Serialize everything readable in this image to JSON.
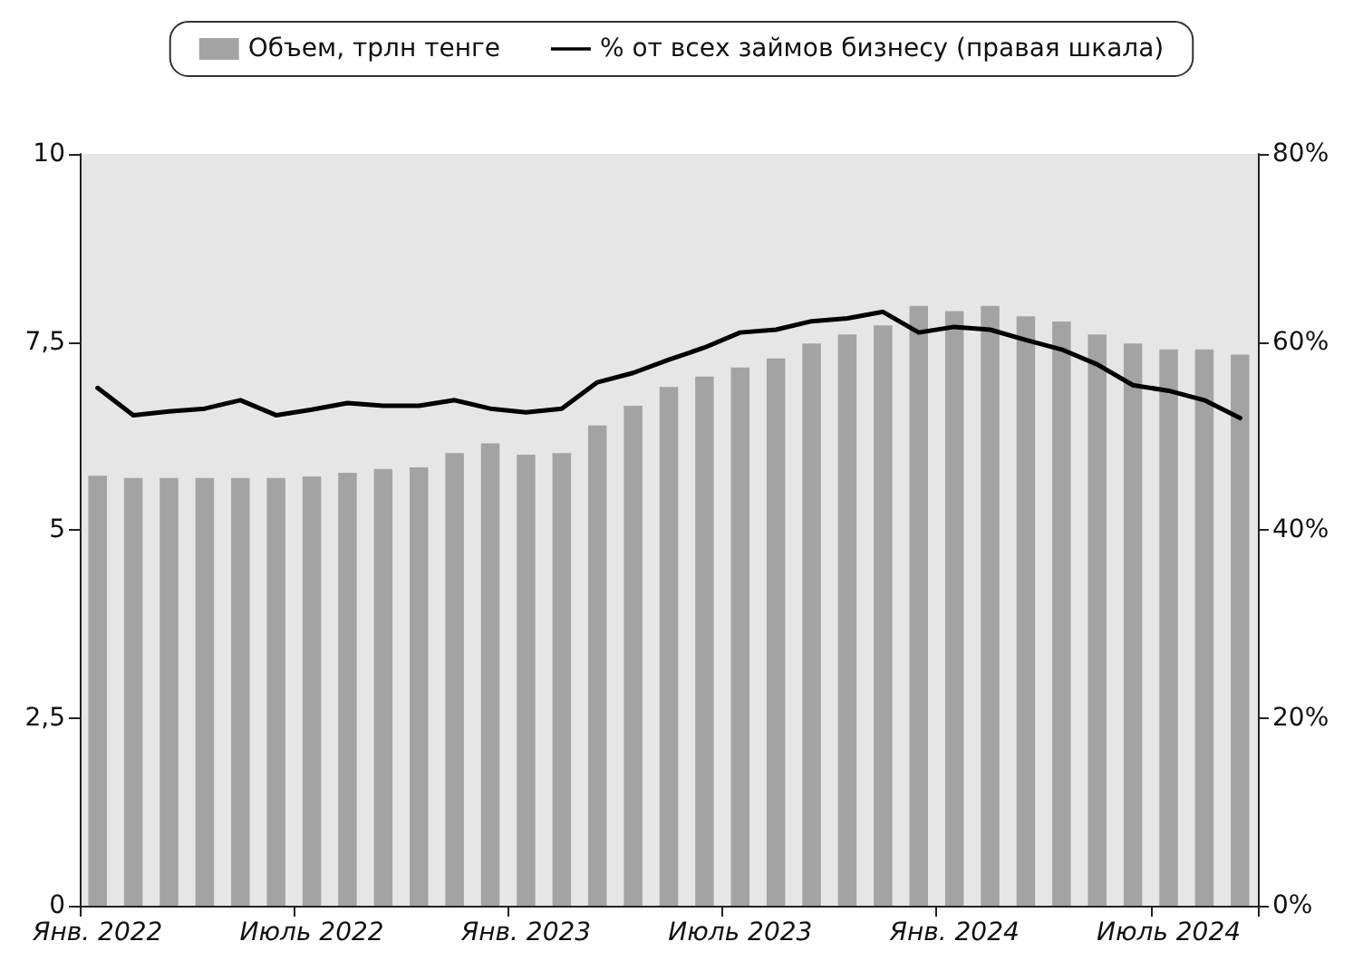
{
  "chart_data": {
    "type": "bar",
    "categories": [
      "Янв. 2022",
      null,
      null,
      null,
      null,
      null,
      "Июль 2022",
      null,
      null,
      null,
      null,
      null,
      "Янв. 2023",
      null,
      null,
      null,
      null,
      null,
      "Июль 2023",
      null,
      null,
      null,
      null,
      null,
      "Янв. 2024",
      null,
      null,
      null,
      null,
      null,
      "Июль 2024",
      null,
      null
    ],
    "series": [
      {
        "name": "Объем, трлн тенге",
        "color": "#a3a3a3",
        "values": [
          5.72,
          5.69,
          5.69,
          5.69,
          5.69,
          5.69,
          5.71,
          5.76,
          5.81,
          5.83,
          6.02,
          6.15,
          6.0,
          6.02,
          6.39,
          6.65,
          6.9,
          7.04,
          7.16,
          7.28,
          7.48,
          7.6,
          7.72,
          7.98,
          7.91,
          7.98,
          7.84,
          7.77,
          7.6,
          7.48,
          7.4,
          7.4,
          7.33
        ]
      },
      {
        "name": "% от всех займов бизнесу (правая шкала)",
        "type": "line",
        "axis": "y2",
        "color": "#000000",
        "values": [
          55.1,
          52.2,
          52.6,
          52.9,
          53.8,
          52.2,
          52.8,
          53.5,
          53.2,
          53.2,
          53.8,
          52.9,
          52.5,
          52.9,
          55.7,
          56.7,
          58.1,
          59.4,
          61.0,
          61.3,
          62.2,
          62.5,
          63.2,
          61.0,
          61.6,
          61.3,
          60.2,
          59.2,
          57.6,
          55.4,
          54.8,
          53.8,
          51.9
        ]
      }
    ],
    "ylim": [
      0,
      10
    ],
    "yticks": [
      {
        "value": 0,
        "label": "0"
      },
      {
        "value": 2.5,
        "label": "2,5"
      },
      {
        "value": 5,
        "label": "5"
      },
      {
        "value": 7.5,
        "label": "7,5"
      },
      {
        "value": 10,
        "label": "10"
      }
    ],
    "y2lim": [
      0,
      80
    ],
    "y2ticks": [
      {
        "value": 0,
        "label": "0%"
      },
      {
        "value": 20,
        "label": "20%"
      },
      {
        "value": 40,
        "label": "40%"
      },
      {
        "value": 60,
        "label": "60%"
      },
      {
        "value": 80,
        "label": "80%"
      }
    ],
    "grid": false,
    "legend": "top",
    "marker": "none",
    "line_style": "solid"
  }
}
